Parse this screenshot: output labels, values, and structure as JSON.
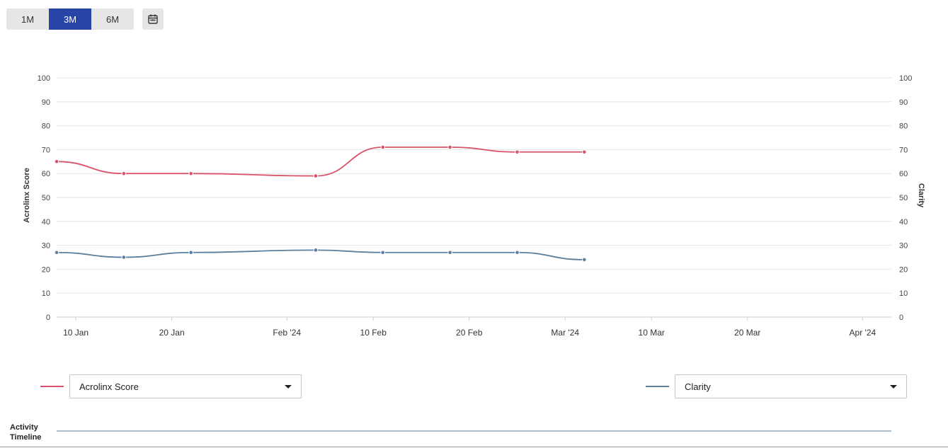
{
  "range_buttons": [
    {
      "label": "1M",
      "active": false
    },
    {
      "label": "3M",
      "active": true
    },
    {
      "label": "6M",
      "active": false
    }
  ],
  "calendar": {
    "icon": "calendar-icon"
  },
  "chart_data": {
    "type": "line",
    "x_axis": {
      "type": "date",
      "range": [
        "2024-01-08",
        "2024-04-04"
      ],
      "ticks": [
        {
          "date": "2024-01-10",
          "label": "10 Jan"
        },
        {
          "date": "2024-01-20",
          "label": "20 Jan"
        },
        {
          "date": "2024-02-01",
          "label": "Feb '24"
        },
        {
          "date": "2024-02-10",
          "label": "10 Feb"
        },
        {
          "date": "2024-02-20",
          "label": "20 Feb"
        },
        {
          "date": "2024-03-01",
          "label": "Mar '24"
        },
        {
          "date": "2024-03-10",
          "label": "10 Mar"
        },
        {
          "date": "2024-03-20",
          "label": "20 Mar"
        },
        {
          "date": "2024-04-01",
          "label": "Apr '24"
        }
      ]
    },
    "y_left": {
      "label": "Acrolinx Score",
      "min": 0,
      "max": 100,
      "ticks": [
        0,
        10,
        20,
        30,
        40,
        50,
        60,
        70,
        80,
        90,
        100
      ]
    },
    "y_right": {
      "label": "Clarity",
      "min": 0,
      "max": 100,
      "ticks": [
        0,
        10,
        20,
        30,
        40,
        50,
        60,
        70,
        80,
        90,
        100
      ]
    },
    "grid": true,
    "series": [
      {
        "name": "Acrolinx Score",
        "axis": "left",
        "color": "#d9536a",
        "x": [
          "2024-01-08",
          "2024-01-15",
          "2024-01-22",
          "2024-02-04",
          "2024-02-11",
          "2024-02-18",
          "2024-02-25",
          "2024-03-03"
        ],
        "values": [
          65,
          60,
          60,
          59,
          71,
          71,
          69,
          69
        ]
      },
      {
        "name": "Clarity",
        "axis": "right",
        "color": "#5b7f9f",
        "x": [
          "2024-01-08",
          "2024-01-15",
          "2024-01-22",
          "2024-02-04",
          "2024-02-11",
          "2024-02-18",
          "2024-02-25",
          "2024-03-03"
        ],
        "values": [
          27,
          25,
          27,
          28,
          27,
          27,
          27,
          24
        ]
      }
    ]
  },
  "legend": {
    "left": {
      "label": "Acrolinx Score",
      "color": "#d9536a"
    },
    "right": {
      "label": "Clarity",
      "color": "#5b7f9f"
    }
  },
  "activity": {
    "label": "Activity Timeline"
  }
}
